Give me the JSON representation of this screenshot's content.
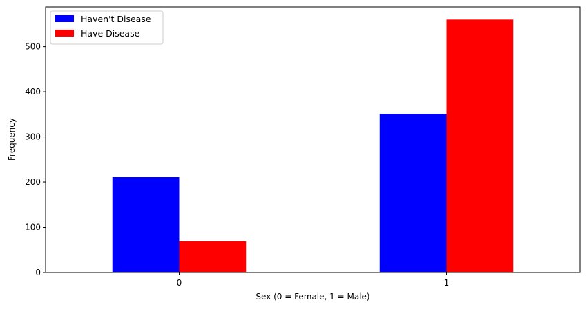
{
  "chart_data": {
    "type": "bar",
    "categories": [
      "0",
      "1"
    ],
    "series": [
      {
        "name": "Haven't Disease",
        "color": "#0000ff",
        "values": [
          211,
          351
        ]
      },
      {
        "name": "Have Disease",
        "color": "#ff0000",
        "values": [
          69,
          560
        ]
      }
    ],
    "xlabel": "Sex (0 = Female, 1 = Male)",
    "ylabel": "Frequency",
    "ylim": [
      0,
      588
    ],
    "yticks": [
      "0",
      "100",
      "200",
      "300",
      "400",
      "500"
    ],
    "legend_position": "top-left",
    "grid": false
  }
}
